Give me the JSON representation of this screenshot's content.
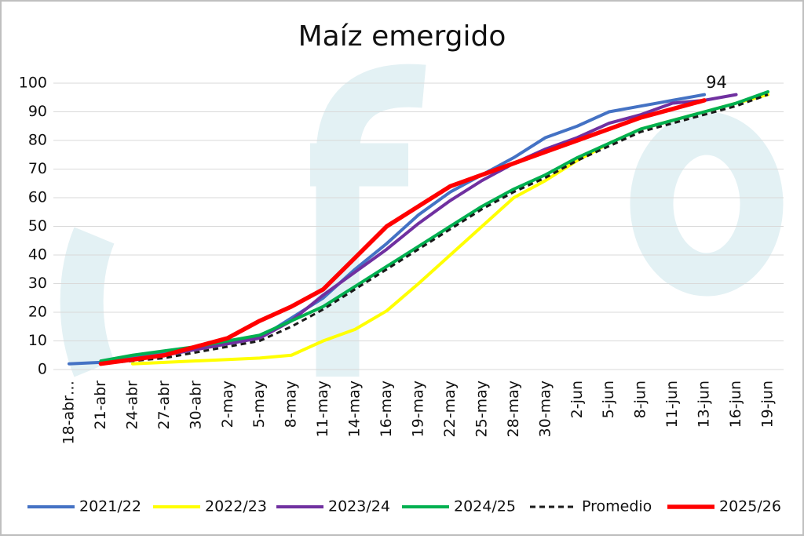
{
  "chart_data": {
    "type": "line",
    "title": "Maíz emergido",
    "categories": [
      "18-abr…",
      "21-abr",
      "24-abr",
      "27-abr",
      "30-abr",
      "2-may",
      "5-may",
      "8-may",
      "11-may",
      "14-may",
      "16-may",
      "19-may",
      "22-may",
      "25-may",
      "28-may",
      "30-may",
      "2-jun",
      "5-jun",
      "8-jun",
      "11-jun",
      "13-jun",
      "16-jun",
      "19-jun"
    ],
    "series": [
      {
        "name": "2021/22",
        "color": "#4472c4",
        "line_width": 4,
        "values": [
          2,
          2.5,
          4,
          5.5,
          7,
          10,
          11,
          18,
          25,
          35,
          44,
          54,
          62,
          68,
          74,
          81,
          85,
          90,
          92,
          94,
          96,
          null,
          null
        ]
      },
      {
        "name": "2022/23",
        "color": "#ffff00",
        "line_width": 4,
        "values": [
          null,
          null,
          2,
          2.5,
          3,
          3.5,
          4,
          5,
          10,
          14,
          20.5,
          30,
          40,
          50,
          60,
          66,
          73,
          79,
          84,
          87,
          90,
          93,
          96
        ]
      },
      {
        "name": "2023/24",
        "color": "#7030a0",
        "line_width": 4,
        "values": [
          null,
          2,
          3.5,
          5,
          7,
          9,
          11,
          17,
          26,
          34,
          42,
          51,
          59,
          66,
          72,
          77,
          81,
          86,
          89,
          93,
          94,
          96,
          null
        ]
      },
      {
        "name": "2024/25",
        "color": "#00b050",
        "line_width": 4,
        "values": [
          null,
          3,
          5,
          6.5,
          8,
          10,
          12,
          17,
          22,
          29,
          36,
          43,
          50,
          57,
          63,
          68,
          74,
          79,
          84,
          87,
          90,
          93,
          97
        ]
      },
      {
        "name": "Promedio",
        "color": "#1a1a1a",
        "line_width": 3,
        "dashed": true,
        "values": [
          null,
          2,
          3,
          4,
          6,
          8,
          10,
          15,
          21,
          28,
          35,
          42,
          49,
          56,
          62,
          67,
          73,
          78,
          83,
          86,
          89,
          92,
          96
        ]
      },
      {
        "name": "2025/26",
        "color": "#ff0000",
        "line_width": 5.5,
        "values": [
          null,
          2,
          3.5,
          5,
          8,
          11,
          17,
          22,
          28,
          39,
          50,
          57,
          64,
          68,
          72,
          76,
          80,
          84,
          88,
          91,
          94,
          null,
          null
        ],
        "value_labels": [
          null,
          null,
          null,
          null,
          null,
          null,
          null,
          null,
          null,
          null,
          null,
          null,
          null,
          null,
          null,
          null,
          null,
          null,
          null,
          null,
          "94",
          null,
          null
        ]
      }
    ],
    "ylim": [
      0,
      100
    ],
    "yticks": [
      0,
      10,
      20,
      30,
      40,
      50,
      60,
      70,
      80,
      90,
      100
    ],
    "grid": true,
    "legend": "bottom"
  }
}
